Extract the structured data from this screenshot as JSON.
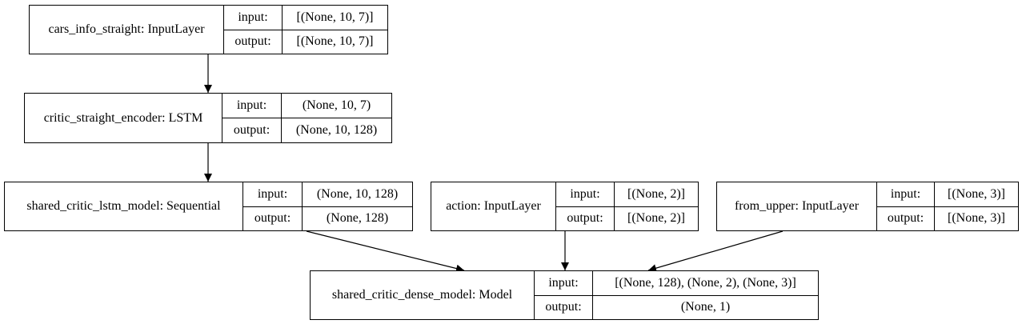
{
  "labels": {
    "input": "input:",
    "output": "output:"
  },
  "nodes": [
    {
      "name": "cars_info_straight: InputLayer",
      "input": "[(None, 10, 7)]",
      "output": "[(None, 10, 7)]"
    },
    {
      "name": "critic_straight_encoder: LSTM",
      "input": "(None, 10, 7)",
      "output": "(None, 10, 128)"
    },
    {
      "name": "shared_critic_lstm_model: Sequential",
      "input": "(None, 10, 128)",
      "output": "(None, 128)"
    },
    {
      "name": "action: InputLayer",
      "input": "[(None, 2)]",
      "output": "[(None, 2)]"
    },
    {
      "name": "from_upper: InputLayer",
      "input": "[(None, 3)]",
      "output": "[(None, 3)]"
    },
    {
      "name": "shared_critic_dense_model: Model",
      "input": "[(None, 128), (None, 2), (None, 3)]",
      "output": "(None, 1)"
    }
  ],
  "edges": [
    {
      "from": "cars_info_straight: InputLayer",
      "to": "critic_straight_encoder: LSTM"
    },
    {
      "from": "critic_straight_encoder: LSTM",
      "to": "shared_critic_lstm_model: Sequential"
    },
    {
      "from": "shared_critic_lstm_model: Sequential",
      "to": "shared_critic_dense_model: Model"
    },
    {
      "from": "action: InputLayer",
      "to": "shared_critic_dense_model: Model"
    },
    {
      "from": "from_upper: InputLayer",
      "to": "shared_critic_dense_model: Model"
    }
  ]
}
